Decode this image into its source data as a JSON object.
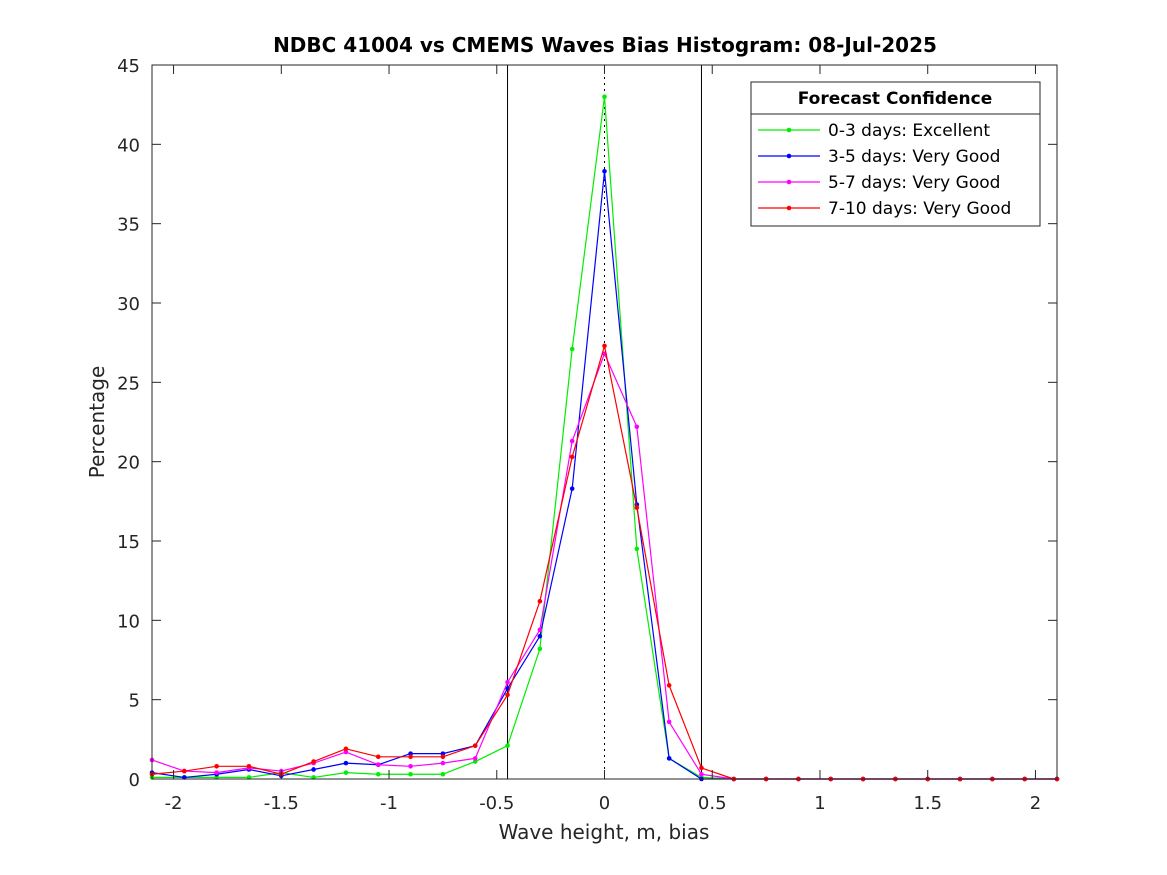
{
  "chart_data": {
    "type": "line",
    "title": "NDBC 41004 vs CMEMS Waves Bias Histogram: 08-Jul-2025",
    "xlabel": "Wave height, m, bias",
    "ylabel": "Percentage",
    "xlim": [
      -2.1,
      2.1
    ],
    "ylim": [
      0,
      45
    ],
    "xticks": [
      -2,
      -1.5,
      -1,
      -0.5,
      0,
      0.5,
      1,
      1.5,
      2
    ],
    "xtick_labels": [
      "-2",
      "-1.5",
      "-1",
      "-0.5",
      "0",
      "0.5",
      "1",
      "1.5",
      "2"
    ],
    "yticks": [
      0,
      5,
      10,
      15,
      20,
      25,
      30,
      35,
      40,
      45
    ],
    "ytick_labels": [
      "0",
      "5",
      "10",
      "15",
      "20",
      "25",
      "30",
      "35",
      "40",
      "45"
    ],
    "grid": false,
    "vertical_lines": [
      {
        "x": -0.45,
        "style": "solid"
      },
      {
        "x": 0,
        "style": "dotted"
      },
      {
        "x": 0.45,
        "style": "solid"
      }
    ],
    "legend": {
      "title": "Forecast Confidence",
      "placement": "top-right"
    },
    "x": [
      -2.1,
      -1.95,
      -1.8,
      -1.65,
      -1.5,
      -1.35,
      -1.2,
      -1.05,
      -0.9,
      -0.75,
      -0.6,
      -0.45,
      -0.3,
      -0.15,
      0,
      0.15,
      0.3,
      0.45,
      0.6,
      0.75,
      0.9,
      1.05,
      1.2,
      1.35,
      1.5,
      1.65,
      1.8,
      1.95,
      2.1
    ],
    "series": [
      {
        "name": "0-3 days: Excellent",
        "color": "#00ee00",
        "values": [
          0.1,
          0.1,
          0.1,
          0.1,
          0.4,
          0.1,
          0.4,
          0.3,
          0.3,
          0.3,
          1.1,
          2.1,
          8.2,
          27.1,
          43.0,
          14.5,
          1.3,
          0.1,
          0,
          0,
          0,
          0,
          0,
          0,
          0,
          0,
          0,
          0,
          0
        ]
      },
      {
        "name": "3-5 days: Very Good",
        "color": "#0000ff",
        "values": [
          0.4,
          0.1,
          0.3,
          0.6,
          0.2,
          0.6,
          1.0,
          0.9,
          1.6,
          1.6,
          2.1,
          5.7,
          9.0,
          18.3,
          38.3,
          17.3,
          1.3,
          0,
          0,
          0,
          0,
          0,
          0,
          0,
          0,
          0,
          0,
          0,
          0
        ]
      },
      {
        "name": "5-7 days: Very Good",
        "color": "#ff00ff",
        "values": [
          1.2,
          0.5,
          0.4,
          0.7,
          0.5,
          1.0,
          1.7,
          0.9,
          0.8,
          1.0,
          1.3,
          6.1,
          9.4,
          21.3,
          26.8,
          22.2,
          3.6,
          0.3,
          0,
          0,
          0,
          0,
          0,
          0,
          0,
          0,
          0,
          0,
          0
        ]
      },
      {
        "name": "7-10 days: Very Good",
        "color": "#ff0000",
        "values": [
          0.3,
          0.5,
          0.8,
          0.8,
          0.3,
          1.1,
          1.9,
          1.4,
          1.4,
          1.4,
          2.1,
          5.3,
          11.2,
          20.3,
          27.3,
          17.1,
          5.9,
          0.7,
          0,
          0,
          0,
          0,
          0,
          0,
          0,
          0,
          0,
          0,
          0
        ]
      }
    ]
  }
}
